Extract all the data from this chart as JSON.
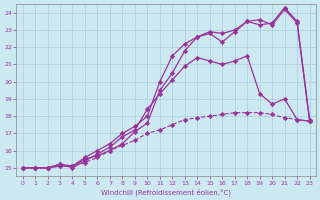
{
  "title": "",
  "xlabel": "Windchill (Refroidissement éolien,°C)",
  "ylabel": "",
  "bg_color": "#cce8f0",
  "grid_color": "#aaccdd",
  "line_color": "#993399",
  "xlim": [
    -0.5,
    23.5
  ],
  "ylim": [
    14.5,
    24.5
  ],
  "xticks": [
    0,
    1,
    2,
    3,
    4,
    5,
    6,
    7,
    8,
    9,
    10,
    11,
    12,
    13,
    14,
    15,
    16,
    17,
    18,
    19,
    20,
    21,
    22,
    23
  ],
  "yticks": [
    15,
    16,
    17,
    18,
    19,
    20,
    21,
    22,
    23,
    24
  ],
  "line1": {
    "x": [
      0,
      1,
      2,
      3,
      4,
      5,
      6,
      7,
      8,
      9,
      10,
      11,
      12,
      13,
      14,
      15,
      16,
      17,
      18,
      19,
      20,
      21,
      22,
      23
    ],
    "y": [
      15,
      15,
      15,
      15.1,
      15.1,
      15.3,
      15.6,
      16.0,
      16.3,
      16.6,
      17.0,
      17.2,
      17.5,
      17.8,
      17.9,
      18.0,
      18.1,
      18.2,
      18.2,
      18.2,
      18.1,
      17.9,
      17.8,
      17.7
    ]
  },
  "line2": {
    "x": [
      0,
      1,
      2,
      3,
      4,
      5,
      6,
      7,
      8,
      9,
      10,
      11,
      12,
      13,
      14,
      15,
      16,
      17,
      18,
      19,
      20,
      21,
      22,
      23
    ],
    "y": [
      15,
      15,
      15,
      15.2,
      15.0,
      15.4,
      15.8,
      16.2,
      16.8,
      17.2,
      18.4,
      19.3,
      20.1,
      20.9,
      21.4,
      21.2,
      21.0,
      21.2,
      21.5,
      19.3,
      18.7,
      19.0,
      17.8,
      17.7
    ]
  },
  "line3": {
    "x": [
      0,
      1,
      2,
      3,
      4,
      5,
      6,
      7,
      8,
      9,
      10,
      11,
      12,
      13,
      14,
      15,
      16,
      17,
      18,
      19,
      20,
      21,
      22,
      23
    ],
    "y": [
      15,
      15,
      15,
      15.1,
      15.1,
      15.5,
      15.7,
      16.0,
      16.4,
      17.1,
      17.6,
      19.5,
      20.5,
      21.8,
      22.6,
      22.8,
      22.3,
      22.9,
      23.5,
      23.6,
      23.3,
      24.2,
      23.4,
      17.7
    ]
  },
  "line4": {
    "x": [
      0,
      1,
      2,
      3,
      4,
      5,
      6,
      7,
      8,
      9,
      10,
      11,
      12,
      13,
      14,
      15,
      16,
      17,
      18,
      19,
      20,
      21,
      22,
      23
    ],
    "y": [
      15,
      15,
      15,
      15.2,
      15.1,
      15.6,
      16.0,
      16.4,
      17.0,
      17.4,
      18.0,
      20.0,
      21.5,
      22.2,
      22.6,
      22.9,
      22.8,
      23.0,
      23.5,
      23.3,
      23.4,
      24.3,
      23.5,
      17.8
    ]
  }
}
